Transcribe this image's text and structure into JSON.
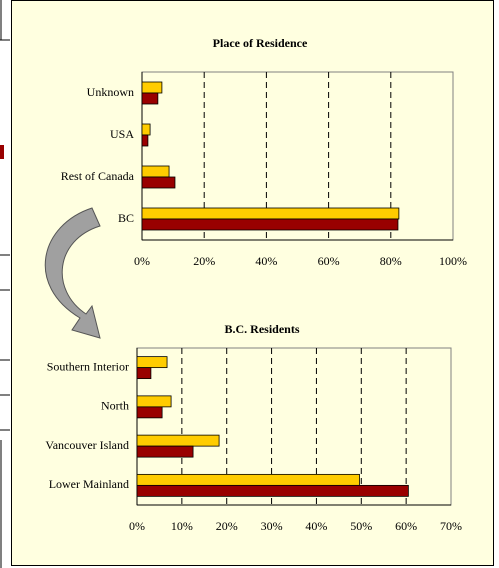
{
  "chart_data": [
    {
      "type": "hbar",
      "title": "Place of Residence",
      "categories": [
        "Unknown",
        "USA",
        "Rest of Canada",
        "BC"
      ],
      "series": [
        {
          "color": "#ffcc00",
          "values": [
            6.4,
            2.6,
            8.7,
            82.6
          ]
        },
        {
          "color": "#990000",
          "values": [
            5.1,
            1.9,
            10.6,
            82.3
          ]
        }
      ],
      "xlim": [
        0,
        100
      ],
      "xticks": [
        {
          "value": 0,
          "label": "0%"
        },
        {
          "value": 20,
          "label": "20%"
        },
        {
          "value": 40,
          "label": "40%"
        },
        {
          "value": 60,
          "label": "60%"
        },
        {
          "value": 80,
          "label": "80%"
        },
        {
          "value": 100,
          "label": "100%"
        }
      ],
      "grid": true
    },
    {
      "type": "hbar",
      "title": "B.C. Residents",
      "categories": [
        "Southern Interior",
        "North",
        "Vancouver Island",
        "Lower Mainland"
      ],
      "series": [
        {
          "color": "#ffcc00",
          "values": [
            6.7,
            7.6,
            18.3,
            49.6
          ]
        },
        {
          "color": "#990000",
          "values": [
            3.1,
            5.6,
            12.5,
            60.5
          ]
        }
      ],
      "xlim": [
        0,
        70
      ],
      "xticks": [
        {
          "value": 0,
          "label": "0%"
        },
        {
          "value": 10,
          "label": "10%"
        },
        {
          "value": 20,
          "label": "20%"
        },
        {
          "value": 30,
          "label": "30%"
        },
        {
          "value": 40,
          "label": "40%"
        },
        {
          "value": 50,
          "label": "50%"
        },
        {
          "value": 60,
          "label": "60%"
        },
        {
          "value": 70,
          "label": "70%"
        }
      ],
      "grid": true
    }
  ]
}
